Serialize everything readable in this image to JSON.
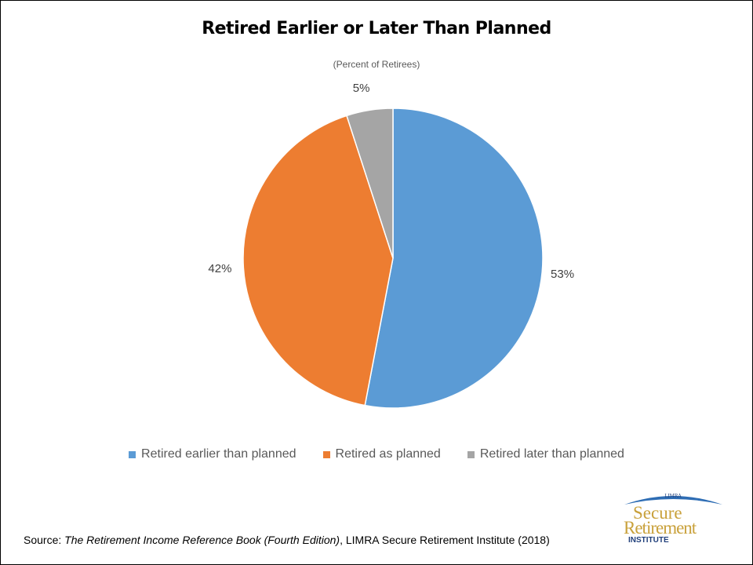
{
  "chart_data": {
    "type": "pie",
    "title": "Retired Earlier or Later Than Planned",
    "subtitle": "(Percent of Retirees)",
    "categories": [
      "Retired earlier than planned",
      "Retired as planned",
      "Retired later than planned"
    ],
    "values": [
      53,
      42,
      5
    ],
    "data_labels": [
      "53%",
      "42%",
      "5%"
    ],
    "colors": [
      "#5B9BD5",
      "#ED7D31",
      "#A5A5A5"
    ],
    "legend_position": "bottom",
    "start_angle": "12 o'clock, clockwise"
  },
  "footer": {
    "source_prefix": "Source: ",
    "source_book": "The Retirement Income Reference Book (Fourth Edition)",
    "source_suffix": ", LIMRA Secure Retirement Institute (2018)"
  },
  "logo": {
    "top_text": "LIMRA",
    "line1": "Secure",
    "line2": "Retirement",
    "line3": "INSTITUTE",
    "arc_color": "#2E6DB4",
    "gold_color": "#C9A13B",
    "navy_color": "#1F3E7A"
  }
}
